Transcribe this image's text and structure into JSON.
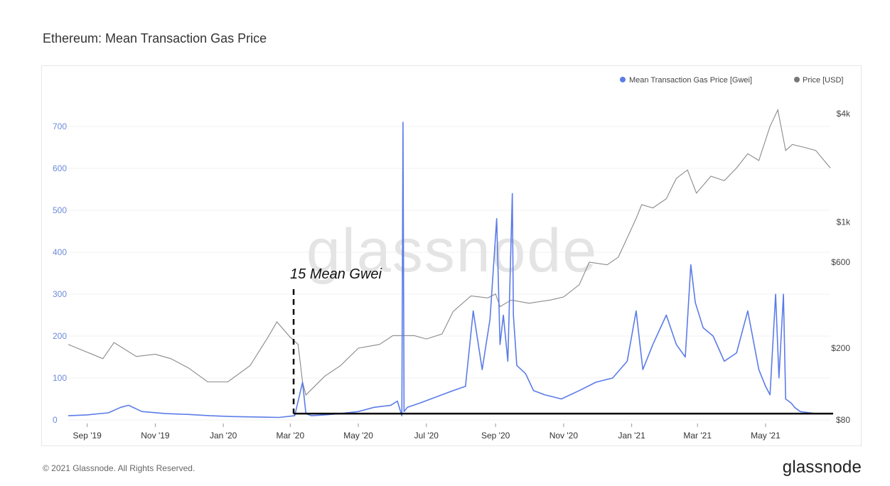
{
  "page": {
    "title": "Ethereum: Mean Transaction Gas Price",
    "copyright": "© 2021 Glassnode. All Rights Reserved.",
    "brand": "glassnode",
    "watermark": "glassnode"
  },
  "colors": {
    "gas": "#5b7ce8",
    "price": "#8a8a8a",
    "annotation": "#000000",
    "axis_left": "#6c8ad8"
  },
  "chart_data": {
    "type": "line",
    "title": "Ethereum: Mean Transaction Gas Price",
    "legend": {
      "placement": "top-right",
      "items": [
        "Mean Transaction Gas Price [Gwei]",
        "Price [USD]"
      ]
    },
    "x_ticks": [
      "Sep '19",
      "Nov '19",
      "Jan '20",
      "Mar '20",
      "May '20",
      "Jul '20",
      "Sep '20",
      "Nov '20",
      "Jan '21",
      "Mar '21",
      "May '21"
    ],
    "y_left": {
      "ticks": [
        0,
        100,
        200,
        300,
        400,
        500,
        600,
        700
      ],
      "range": [
        0,
        750
      ]
    },
    "y_right": {
      "scale": "log",
      "ticks": [
        "$80",
        "$200",
        "$600",
        "$1k",
        "$4k"
      ],
      "range": [
        80,
        4800
      ]
    },
    "annotation": {
      "text": "15 Mean Gwei",
      "level_gwei": 15,
      "start": "Mar '20"
    },
    "series": [
      {
        "name": "Mean Transaction Gas Price [Gwei]",
        "axis": "left",
        "x": [
          "2019-08-15",
          "2019-09-01",
          "2019-09-20",
          "2019-10-01",
          "2019-10-08",
          "2019-10-20",
          "2019-11-10",
          "2019-12-01",
          "2019-12-20",
          "2020-01-10",
          "2020-02-01",
          "2020-02-20",
          "2020-03-05",
          "2020-03-12",
          "2020-03-15",
          "2020-03-20",
          "2020-04-01",
          "2020-04-15",
          "2020-05-01",
          "2020-05-15",
          "2020-05-30",
          "2020-06-05",
          "2020-06-09",
          "2020-06-10",
          "2020-06-11",
          "2020-06-14",
          "2020-06-25",
          "2020-07-10",
          "2020-07-25",
          "2020-08-05",
          "2020-08-12",
          "2020-08-20",
          "2020-08-27",
          "2020-09-02",
          "2020-09-05",
          "2020-09-08",
          "2020-09-12",
          "2020-09-16",
          "2020-09-17",
          "2020-09-20",
          "2020-09-28",
          "2020-10-05",
          "2020-10-15",
          "2020-10-30",
          "2020-11-15",
          "2020-11-30",
          "2020-12-15",
          "2020-12-28",
          "2021-01-05",
          "2021-01-11",
          "2021-01-20",
          "2021-02-01",
          "2021-02-10",
          "2021-02-18",
          "2021-02-23",
          "2021-02-27",
          "2021-03-06",
          "2021-03-15",
          "2021-03-25",
          "2021-04-05",
          "2021-04-15",
          "2021-04-25",
          "2021-05-01",
          "2021-05-05",
          "2021-05-10",
          "2021-05-13",
          "2021-05-17",
          "2021-05-19",
          "2021-05-24",
          "2021-05-27",
          "2021-06-01",
          "2021-06-15",
          "2021-06-28"
        ],
        "y": [
          10,
          12,
          17,
          30,
          35,
          20,
          15,
          13,
          10,
          8,
          7,
          6,
          10,
          90,
          15,
          10,
          12,
          15,
          20,
          30,
          35,
          45,
          10,
          710,
          20,
          30,
          40,
          55,
          70,
          80,
          260,
          120,
          240,
          480,
          180,
          250,
          140,
          540,
          250,
          130,
          110,
          70,
          60,
          50,
          70,
          90,
          100,
          140,
          260,
          120,
          180,
          250,
          180,
          150,
          370,
          280,
          220,
          200,
          140,
          160,
          260,
          120,
          80,
          60,
          300,
          100,
          300,
          50,
          40,
          30,
          20,
          15,
          15
        ]
      },
      {
        "name": "Price [USD]",
        "axis": "right",
        "x": [
          "2019-08-15",
          "2019-09-01",
          "2019-09-15",
          "2019-09-25",
          "2019-10-15",
          "2019-11-01",
          "2019-11-15",
          "2019-12-01",
          "2019-12-18",
          "2020-01-05",
          "2020-01-25",
          "2020-02-10",
          "2020-02-18",
          "2020-03-01",
          "2020-03-08",
          "2020-03-12",
          "2020-03-15",
          "2020-04-01",
          "2020-04-15",
          "2020-05-01",
          "2020-05-20",
          "2020-06-01",
          "2020-06-20",
          "2020-07-01",
          "2020-07-15",
          "2020-07-25",
          "2020-08-10",
          "2020-08-25",
          "2020-09-01",
          "2020-09-05",
          "2020-09-15",
          "2020-10-01",
          "2020-10-20",
          "2020-11-01",
          "2020-11-15",
          "2020-11-24",
          "2020-12-10",
          "2020-12-20",
          "2021-01-05",
          "2021-01-10",
          "2021-01-20",
          "2021-02-01",
          "2021-02-10",
          "2021-02-20",
          "2021-02-28",
          "2021-03-13",
          "2021-03-25",
          "2021-04-05",
          "2021-04-15",
          "2021-04-25",
          "2021-05-05",
          "2021-05-12",
          "2021-05-19",
          "2021-05-25",
          "2021-06-05",
          "2021-06-15",
          "2021-06-28"
        ],
        "y": [
          210,
          190,
          175,
          215,
          180,
          185,
          175,
          155,
          130,
          130,
          160,
          230,
          280,
          230,
          210,
          130,
          110,
          140,
          160,
          200,
          210,
          235,
          235,
          225,
          240,
          320,
          390,
          380,
          400,
          340,
          370,
          355,
          370,
          385,
          450,
          600,
          580,
          640,
          1050,
          1250,
          1200,
          1350,
          1750,
          1950,
          1450,
          1800,
          1700,
          2000,
          2400,
          2200,
          3400,
          4200,
          2500,
          2700,
          2600,
          2500,
          2000
        ]
      }
    ]
  }
}
